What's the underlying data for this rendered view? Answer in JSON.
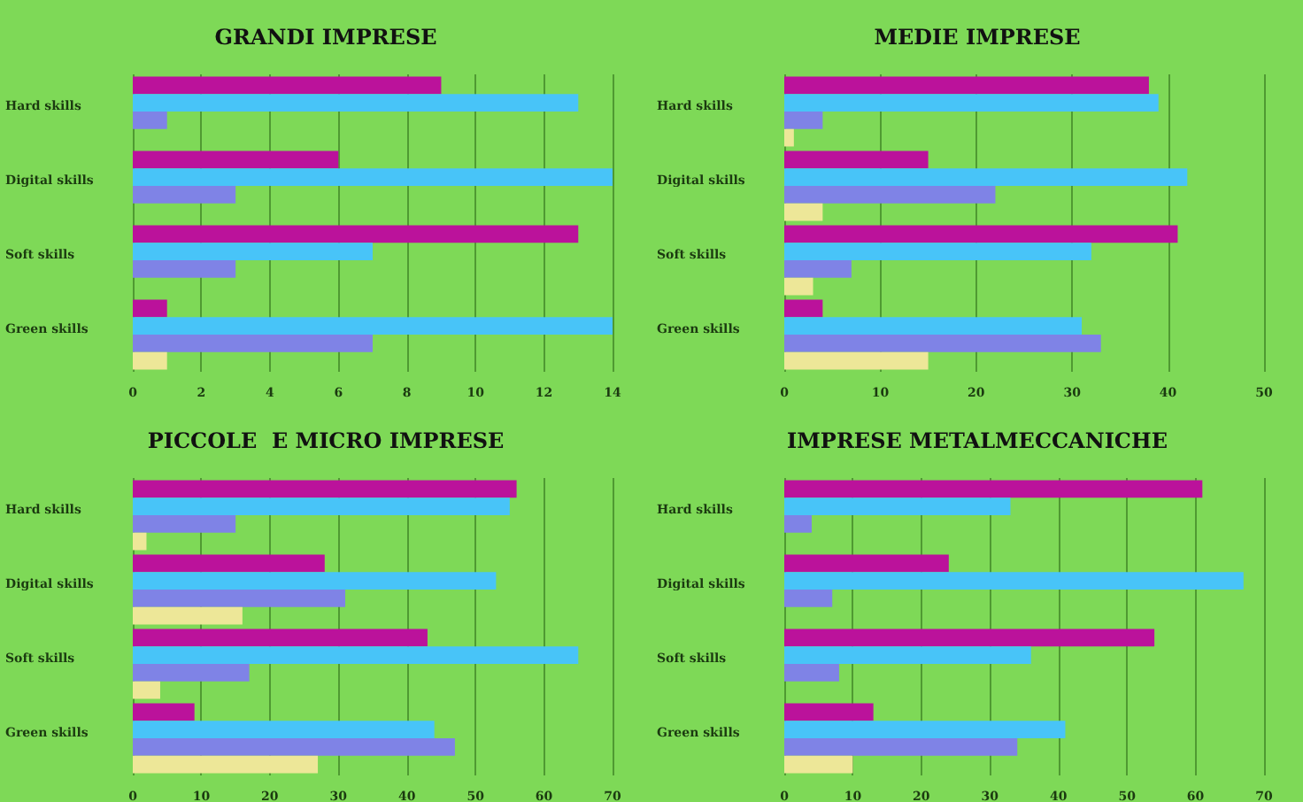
{
  "chart_data": [
    {
      "type": "bar",
      "orientation": "horizontal",
      "title": "GRANDI IMPRESE",
      "categories": [
        "Hard skills",
        "Digital skills",
        "Soft skills",
        "Green skills"
      ],
      "xlim": [
        0,
        14
      ],
      "xticks": [
        0,
        2,
        4,
        6,
        8,
        10,
        12,
        14
      ],
      "grid": "x",
      "series": [
        {
          "color": "#bb129b",
          "values": [
            9,
            6,
            13,
            1
          ]
        },
        {
          "color": "#48c4f8",
          "values": [
            13,
            14,
            7,
            14
          ]
        },
        {
          "color": "#7f83e6",
          "values": [
            1,
            3,
            3,
            7
          ]
        },
        {
          "color": "#ede798",
          "values": [
            0,
            0,
            0,
            1
          ]
        }
      ]
    },
    {
      "type": "bar",
      "orientation": "horizontal",
      "title": "MEDIE IMPRESE",
      "categories": [
        "Hard skills",
        "Digital skills",
        "Soft skills",
        "Green skills"
      ],
      "xlim": [
        0,
        50
      ],
      "xticks": [
        0,
        10,
        20,
        30,
        40,
        50
      ],
      "grid": "x",
      "series": [
        {
          "color": "#bb129b",
          "values": [
            38,
            15,
            41,
            4
          ]
        },
        {
          "color": "#48c4f8",
          "values": [
            39,
            42,
            32,
            31
          ]
        },
        {
          "color": "#7f83e6",
          "values": [
            4,
            22,
            7,
            33
          ]
        },
        {
          "color": "#ede798",
          "values": [
            1,
            4,
            3,
            15
          ]
        }
      ]
    },
    {
      "type": "bar",
      "orientation": "horizontal",
      "title": "PICCOLE  E MICRO IMPRESE",
      "categories": [
        "Hard skills",
        "Digital skills",
        "Soft skills",
        "Green skills"
      ],
      "xlim": [
        0,
        70
      ],
      "xticks": [
        0,
        10,
        20,
        30,
        40,
        50,
        60,
        70
      ],
      "grid": "x",
      "series": [
        {
          "color": "#bb129b",
          "values": [
            56,
            28,
            43,
            9
          ]
        },
        {
          "color": "#48c4f8",
          "values": [
            55,
            53,
            65,
            44
          ]
        },
        {
          "color": "#7f83e6",
          "values": [
            15,
            31,
            17,
            47
          ]
        },
        {
          "color": "#ede798",
          "values": [
            2,
            16,
            4,
            27
          ]
        }
      ]
    },
    {
      "type": "bar",
      "orientation": "horizontal",
      "title": "IMPRESE METALMECCANICHE",
      "categories": [
        "Hard skills",
        "Digital skills",
        "Soft skills",
        "Green skills"
      ],
      "xlim": [
        0,
        70
      ],
      "xticks": [
        0,
        10,
        20,
        30,
        40,
        50,
        60,
        70
      ],
      "grid": "x",
      "series": [
        {
          "color": "#bb129b",
          "values": [
            61,
            24,
            54,
            13
          ]
        },
        {
          "color": "#48c4f8",
          "values": [
            33,
            67,
            36,
            41
          ]
        },
        {
          "color": "#7f83e6",
          "values": [
            4,
            7,
            8,
            34
          ]
        },
        {
          "color": "#ede798",
          "values": [
            0,
            0,
            0,
            10
          ]
        }
      ]
    }
  ]
}
